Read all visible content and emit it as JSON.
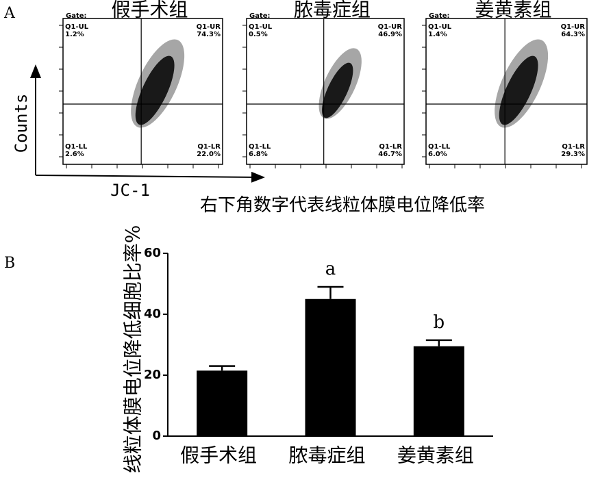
{
  "panel_a": {
    "label": "A",
    "y_axis_label": "Counts",
    "x_axis_label": "JC-1",
    "caption": "右下角数字代表线粒体膜电位降低率",
    "plots": [
      {
        "title": "假手术组",
        "gate": "Gate:",
        "quadrants": [
          {
            "name": "Q1-UL",
            "percent": "1.2%"
          },
          {
            "name": "Q1-UR",
            "percent": "74.3%"
          },
          {
            "name": "Q1-LL",
            "percent": "2.6%"
          },
          {
            "name": "Q1-LR",
            "percent": "22.0%"
          }
        ]
      },
      {
        "title": "脓毒症组",
        "gate": "Gate:",
        "quadrants": [
          {
            "name": "Q1-UL",
            "percent": "0.5%"
          },
          {
            "name": "Q1-UR",
            "percent": "46.9%"
          },
          {
            "name": "Q1-LL",
            "percent": "6.8%"
          },
          {
            "name": "Q1-LR",
            "percent": "46.7%"
          }
        ]
      },
      {
        "title": "姜黄素组",
        "gate": "Gate:",
        "quadrants": [
          {
            "name": "Q1-UL",
            "percent": "1.4%"
          },
          {
            "name": "Q1-UR",
            "percent": "64.3%"
          },
          {
            "name": "Q1-LL",
            "percent": "6.0%"
          },
          {
            "name": "Q1-LR",
            "percent": "29.3%"
          }
        ]
      }
    ]
  },
  "chart_data": {
    "type": "bar",
    "panel_label": "B",
    "y_axis_label": "线粒体膜电位降低细胞比率%",
    "categories": [
      "假手术组",
      "脓毒症组",
      "姜黄素组"
    ],
    "values": [
      21.5,
      45,
      29.5
    ],
    "errors": [
      1.5,
      4,
      2
    ],
    "color": "#000000",
    "ylim": [
      0,
      60
    ],
    "yticks": [
      0,
      20,
      40,
      60
    ],
    "annotations": [
      {
        "category": "脓毒症组",
        "text": "a"
      },
      {
        "category": "姜黄素组",
        "text": "b"
      }
    ]
  }
}
